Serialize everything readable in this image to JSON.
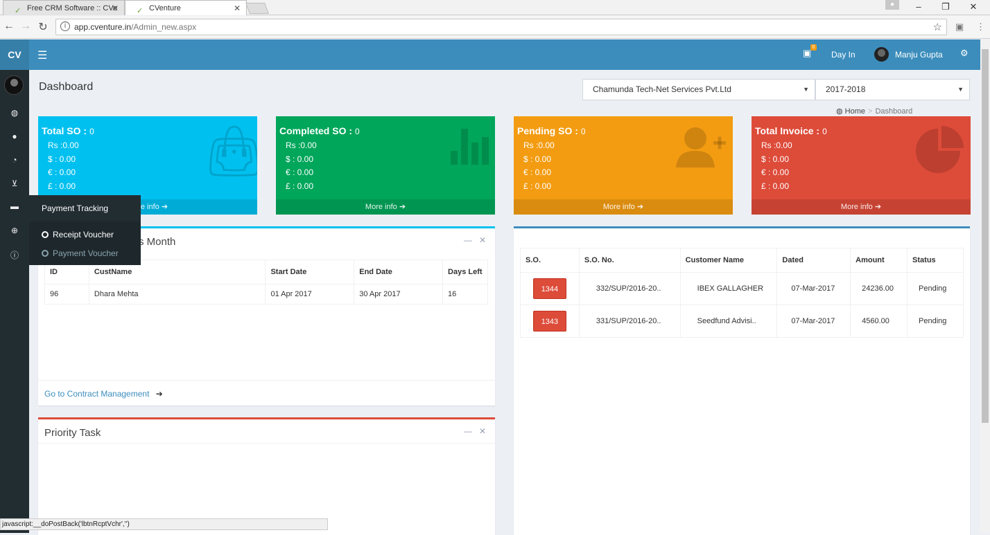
{
  "browser": {
    "tabs": [
      {
        "title": "Free CRM Software :: CVe"
      },
      {
        "title": "CVenture"
      }
    ],
    "url_host": "app.cventure.in",
    "url_path": "/Admin_new.aspx",
    "status_text": "javascript:__doPostBack('lbtnRcptVchr','')"
  },
  "header": {
    "logo": "CV",
    "badge": "0",
    "day_in": "Day In",
    "user_name": "Manju Gupta"
  },
  "flyout": {
    "title": "Payment Tracking",
    "items": [
      {
        "label": "Receipt Voucher"
      },
      {
        "label": "Payment Voucher"
      }
    ]
  },
  "page": {
    "title": "Dashboard",
    "company": "Chamunda Tech-Net Services Pvt.Ltd",
    "year": "2017-2018",
    "breadcrumb": {
      "home": "Home",
      "current": "Dashboard"
    }
  },
  "boxes": [
    {
      "title": "Total SO :",
      "count": "0",
      "rs": "Rs :0.00",
      "usd": "$ :  0.00",
      "eur": "€ :  0.00",
      "gbp": "£ :  0.00",
      "footer": "More info",
      "color": "#00c0ef"
    },
    {
      "title": "Completed SO :",
      "count": "0",
      "rs": "Rs :0.00",
      "usd": "$ :  0.00",
      "eur": "€ :  0.00",
      "gbp": "£ :  0.00",
      "footer": "More info",
      "color": "#00a65a"
    },
    {
      "title": "Pending SO :",
      "count": "0",
      "rs": "Rs :0.00",
      "usd": "$ :  0.00",
      "eur": "€ :  0.00",
      "gbp": "£ :  0.00",
      "footer": "More info",
      "color": "#f39c12"
    },
    {
      "title": "Total Invoice :",
      "count": "0",
      "rs": "Rs :0.00",
      "usd": "$ :  0.00",
      "eur": "€ :  0.00",
      "gbp": "£ :  0.00",
      "footer": "More info",
      "color": "#dd4b39"
    }
  ],
  "contracts": {
    "title_fragment": "s Month",
    "columns": [
      "ID",
      "CustName",
      "Start Date",
      "End Date",
      "Days Left"
    ],
    "rows": [
      [
        "96",
        "Dhara Mehta",
        "01 Apr 2017",
        "30 Apr 2017",
        "16"
      ]
    ],
    "link": "Go to Contract Management"
  },
  "priority": {
    "title": "Priority Task"
  },
  "orders": {
    "columns": [
      "S.O.",
      "S.O. No.",
      "Customer Name",
      "Dated",
      "Amount",
      "Status"
    ],
    "rows": [
      [
        "1344",
        "332/SUP/2016-20..",
        "IBEX GALLAGHER",
        "07-Mar-2017",
        "24236.00",
        "Pending"
      ],
      [
        "1343",
        "331/SUP/2016-20..",
        "Seedfund Advisi..",
        "07-Mar-2017",
        "4560.00",
        "Pending"
      ]
    ]
  }
}
